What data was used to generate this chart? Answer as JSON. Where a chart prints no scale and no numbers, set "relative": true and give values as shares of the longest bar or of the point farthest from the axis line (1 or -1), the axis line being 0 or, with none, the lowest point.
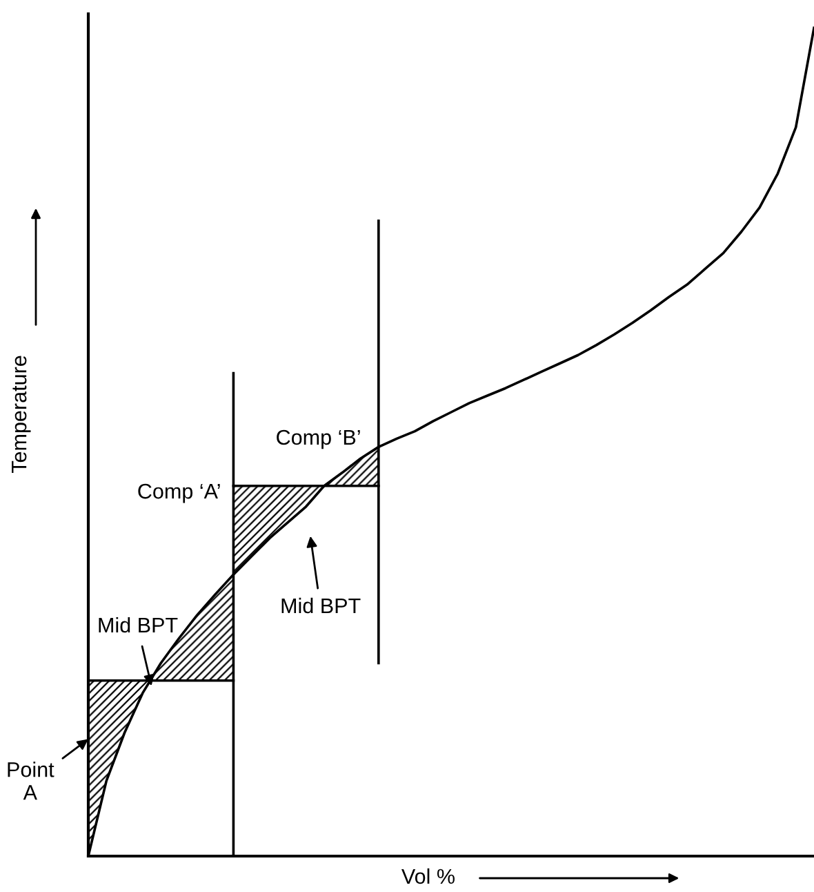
{
  "chart_data": {
    "type": "line",
    "relative": true,
    "xlabel": "Vol %",
    "ylabel": "Temperature",
    "marker": "none",
    "line_style": "solid",
    "categories": [
      null,
      null,
      null,
      null,
      null,
      null,
      null,
      null,
      null,
      null,
      null,
      null,
      null,
      null,
      null,
      null,
      null,
      null,
      null,
      null,
      null,
      null,
      null,
      null,
      null,
      null,
      null,
      null,
      null,
      null,
      null,
      null,
      null,
      null,
      null,
      null,
      null,
      null,
      null,
      null,
      null
    ],
    "series": [
      {
        "color": "#000000",
        "values": [
          0,
          0.091,
          0.149,
          0.197,
          0.233,
          0.263,
          0.291,
          0.316,
          0.34,
          0.362,
          0.384,
          0.403,
          0.422,
          0.447,
          0.463,
          0.48,
          0.494,
          0.504,
          0.513,
          0.525,
          0.536,
          0.547,
          0.556,
          0.565,
          0.575,
          0.585,
          0.595,
          0.605,
          0.617,
          0.63,
          0.644,
          0.659,
          0.675,
          0.69,
          0.709,
          0.728,
          0.754,
          0.783,
          0.824,
          0.88,
          1
        ]
      },
      {
        "color": "#000000",
        "values": [
          0.212,
          0.212,
          0.212,
          0.212,
          0.212,
          0.212,
          0.212,
          0.212,
          0.212,
          null,
          null,
          null,
          null,
          null,
          null,
          null,
          null,
          null,
          null,
          null,
          null,
          null,
          null,
          null,
          null,
          null,
          null,
          null,
          null,
          null,
          null,
          null,
          null,
          null,
          null,
          null,
          null,
          null,
          null,
          null,
          null
        ],
        "upper": [
          0.212,
          0.212,
          0.212,
          0.212,
          0.212,
          0.212,
          0.212,
          0.212,
          0.212,
          null,
          null,
          null,
          null,
          null,
          null,
          null,
          null,
          null,
          null,
          null,
          null,
          null,
          null,
          null,
          null,
          null,
          null,
          null,
          null,
          null,
          null,
          null,
          null,
          null,
          null,
          null,
          null,
          null,
          null,
          null,
          null
        ],
        "lower": [
          0,
          0.091,
          0.149,
          0.197,
          0.233,
          0.263,
          0.291,
          0.316,
          0.34,
          null,
          null,
          null,
          null,
          null,
          null,
          null,
          null,
          null,
          null,
          null,
          null,
          null,
          null,
          null,
          null,
          null,
          null,
          null,
          null,
          null,
          null,
          null,
          null,
          null,
          null,
          null,
          null,
          null,
          null,
          null,
          null
        ]
      },
      {
        "color": "#000000",
        "values": [
          null,
          null,
          null,
          null,
          null,
          null,
          null,
          null,
          0.447,
          0.447,
          0.447,
          0.447,
          0.447,
          0.447,
          0.447,
          0.447,
          0.447,
          null,
          null,
          null,
          null,
          null,
          null,
          null,
          null,
          null,
          null,
          null,
          null,
          null,
          null,
          null,
          null,
          null,
          null,
          null,
          null,
          null,
          null,
          null,
          null
        ],
        "upper": [
          null,
          null,
          null,
          null,
          null,
          null,
          null,
          null,
          0.447,
          0.447,
          0.447,
          0.447,
          0.447,
          0.447,
          0.447,
          0.447,
          0.447,
          null,
          null,
          null,
          null,
          null,
          null,
          null,
          null,
          null,
          null,
          null,
          null,
          null,
          null,
          null,
          null,
          null,
          null,
          null,
          null,
          null,
          null,
          null,
          null
        ],
        "lower": [
          null,
          null,
          null,
          null,
          null,
          null,
          null,
          null,
          0.34,
          0.362,
          0.384,
          0.403,
          0.422,
          0.447,
          0.463,
          0.48,
          0.494,
          null,
          null,
          null,
          null,
          null,
          null,
          null,
          null,
          null,
          null,
          null,
          null,
          null,
          null,
          null,
          null,
          null,
          null,
          null,
          null,
          null,
          null,
          null,
          null
        ]
      }
    ],
    "annotations": [
      "Comp ‘A’",
      "Comp ‘B’",
      "Mid BPT",
      "Mid BPT",
      "Point\nA"
    ]
  }
}
